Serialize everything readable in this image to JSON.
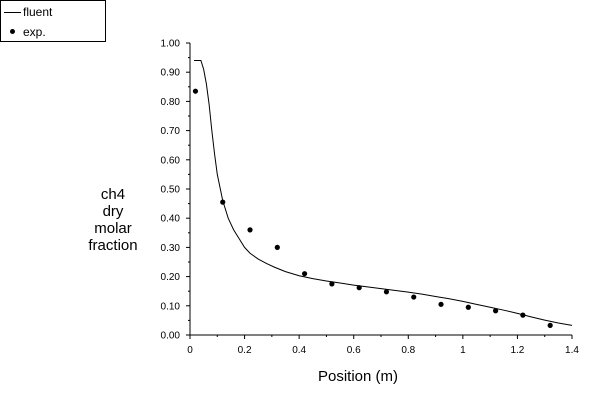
{
  "chart_data": {
    "type": "line",
    "title": "",
    "xlabel": "Position (m)",
    "ylabel_lines": [
      "ch4",
      "dry",
      "molar",
      "fraction"
    ],
    "xlim": [
      0,
      1.4
    ],
    "ylim": [
      0,
      1.0
    ],
    "x_ticks": [
      "0",
      "0.2",
      "0.4",
      "0.6",
      "0.8",
      "1",
      "1.2",
      "1.4"
    ],
    "y_ticks": [
      "0.00",
      "0.10",
      "0.20",
      "0.30",
      "0.40",
      "0.50",
      "0.60",
      "0.70",
      "0.80",
      "0.90",
      "1.00"
    ],
    "grid": false,
    "legend": {
      "position": "top-left",
      "entries": [
        {
          "label": "fluent",
          "marker": "line"
        },
        {
          "label": "exp.",
          "marker": "dot"
        }
      ]
    },
    "series": [
      {
        "name": "fluent",
        "style": "line",
        "color": "#000000",
        "x": [
          0.015,
          0.04,
          0.05,
          0.06,
          0.07,
          0.08,
          0.09,
          0.1,
          0.12,
          0.14,
          0.16,
          0.18,
          0.2,
          0.22,
          0.25,
          0.28,
          0.31,
          0.35,
          0.4,
          0.45,
          0.5,
          0.55,
          0.6,
          0.65,
          0.7,
          0.75,
          0.8,
          0.85,
          0.9,
          0.95,
          1.0,
          1.05,
          1.1,
          1.15,
          1.2,
          1.25,
          1.3,
          1.35,
          1.4
        ],
        "y": [
          0.94,
          0.94,
          0.91,
          0.86,
          0.79,
          0.7,
          0.62,
          0.55,
          0.46,
          0.4,
          0.36,
          0.33,
          0.3,
          0.28,
          0.26,
          0.245,
          0.232,
          0.217,
          0.203,
          0.193,
          0.185,
          0.178,
          0.171,
          0.165,
          0.159,
          0.153,
          0.147,
          0.14,
          0.132,
          0.124,
          0.115,
          0.105,
          0.095,
          0.085,
          0.074,
          0.062,
          0.051,
          0.041,
          0.033
        ]
      },
      {
        "name": "exp.",
        "style": "scatter",
        "color": "#000000",
        "x": [
          0.02,
          0.12,
          0.22,
          0.32,
          0.42,
          0.52,
          0.62,
          0.72,
          0.82,
          0.92,
          1.02,
          1.12,
          1.22,
          1.32
        ],
        "y": [
          0.835,
          0.455,
          0.36,
          0.3,
          0.21,
          0.175,
          0.162,
          0.148,
          0.13,
          0.105,
          0.095,
          0.083,
          0.068,
          0.033
        ]
      }
    ]
  }
}
